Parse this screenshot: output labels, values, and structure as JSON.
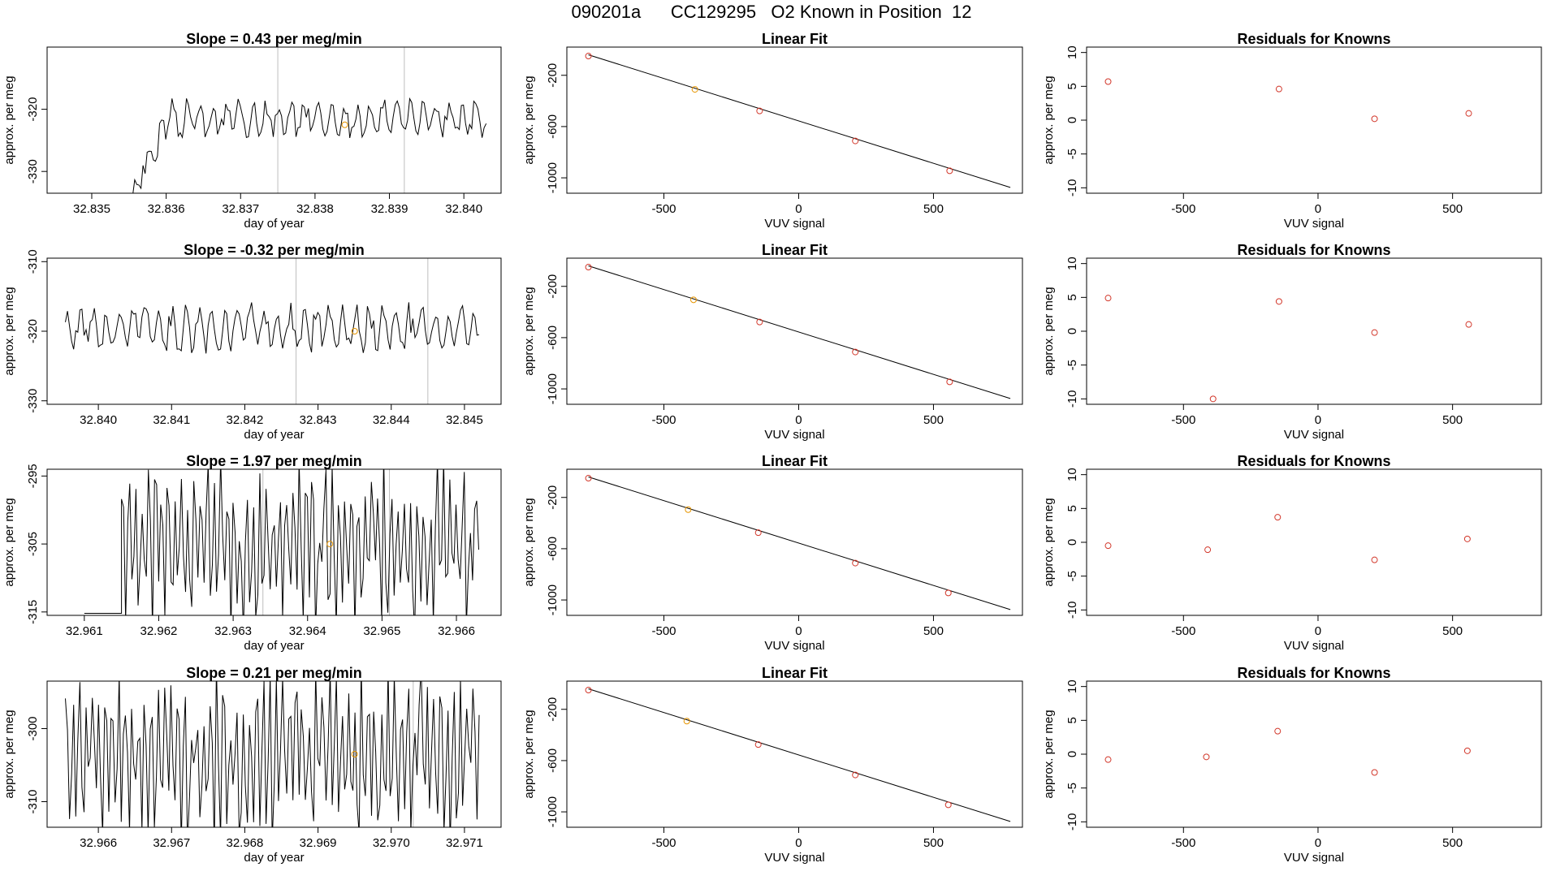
{
  "header": {
    "title": "090201a      CC129295   O2 Known in Position  12"
  },
  "colors": {
    "trace": "#000000",
    "frame": "#000000",
    "marker_orange": "#e69500",
    "marker_red": "#d2372a",
    "vline": "#bebebe"
  },
  "chart_data": [
    {
      "type": "line",
      "row": 0,
      "col": 0,
      "title": "Slope =  0.43  per meg/min",
      "xlabel": "day of year",
      "ylabel": "approx. per meg",
      "xlim": [
        32.8344,
        32.8405
      ],
      "ylim": [
        -333.5,
        -310
      ],
      "xticks": [
        32.835,
        32.836,
        32.837,
        32.838,
        32.839,
        32.84
      ],
      "xtick_labels": [
        "32.835",
        "32.836",
        "32.837",
        "32.838",
        "32.839",
        "32.840"
      ],
      "yticks": [
        -330,
        -320
      ],
      "ytick_labels": [
        "-330",
        "-320"
      ],
      "vlines": [
        32.8375,
        32.8392
      ],
      "marker": {
        "x": 32.8384,
        "y": -322.5
      },
      "trace": {
        "x0": 32.83555,
        "x1": 32.8403,
        "center": -321.5,
        "amp": 3.2,
        "freq": 0.45,
        "start_low": -333.5,
        "ramp_points": 18,
        "seed": 3
      }
    },
    {
      "type": "line",
      "row": 1,
      "col": 0,
      "title": "Slope =  -0.32  per meg/min",
      "xlabel": "day of year",
      "ylabel": "approx. per meg",
      "xlim": [
        32.8393,
        32.8455
      ],
      "ylim": [
        -330.5,
        -309.5
      ],
      "xticks": [
        32.84,
        32.841,
        32.842,
        32.843,
        32.844,
        32.845
      ],
      "xtick_labels": [
        "32.840",
        "32.841",
        "32.842",
        "32.843",
        "32.844",
        "32.845"
      ],
      "yticks": [
        -330,
        -320,
        -310
      ],
      "ytick_labels": [
        "-330",
        "-320",
        "-310"
      ],
      "vlines": [
        32.8427,
        32.8445
      ],
      "marker": {
        "x": 32.8435,
        "y": -320.0
      },
      "trace": {
        "x0": 32.83955,
        "x1": 32.8452,
        "center": -319.5,
        "amp": 3.5,
        "freq": 0.45,
        "start_low": null,
        "ramp_points": 0,
        "seed": 7
      }
    },
    {
      "type": "line",
      "row": 2,
      "col": 0,
      "title": "Slope =  1.97  per meg/min",
      "xlabel": "day of year",
      "ylabel": "approx. per meg",
      "xlim": [
        32.9605,
        32.9666
      ],
      "ylim": [
        -315.5,
        -294
      ],
      "xticks": [
        32.961,
        32.962,
        32.963,
        32.964,
        32.965,
        32.966
      ],
      "xtick_labels": [
        "32.961",
        "32.962",
        "32.963",
        "32.964",
        "32.965",
        "32.966"
      ],
      "yticks": [
        -315,
        -305,
        -295
      ],
      "ytick_labels": [
        "-315",
        "-305",
        "-295"
      ],
      "vlines": [
        32.9634,
        32.9651
      ],
      "marker": {
        "x": 32.9643,
        "y": -305.0
      },
      "trace": {
        "x0": 32.9615,
        "x1": 32.9663,
        "center": -305,
        "amp": 12,
        "freq": 0.9,
        "start_low": -315.2,
        "ramp_points": 0,
        "seed": 11,
        "flat_from": 32.961
      }
    },
    {
      "type": "line",
      "row": 3,
      "col": 0,
      "title": "Slope =  0.21  per meg/min",
      "xlabel": "day of year",
      "ylabel": "approx. per meg",
      "xlim": [
        32.9653,
        32.9715
      ],
      "ylim": [
        -313.5,
        -293.5
      ],
      "xticks": [
        32.966,
        32.967,
        32.968,
        32.969,
        32.97,
        32.971
      ],
      "xtick_labels": [
        "32.966",
        "32.967",
        "32.968",
        "32.969",
        "32.970",
        "32.971"
      ],
      "yticks": [
        -310,
        -300
      ],
      "ytick_labels": [
        "-310",
        "-300"
      ],
      "vlines": [
        32.9703
      ],
      "marker": {
        "x": 32.9695,
        "y": -303.5
      },
      "trace": {
        "x0": 32.96555,
        "x1": 32.9712,
        "center": -303.5,
        "amp": 12,
        "freq": 0.9,
        "start_low": null,
        "ramp_points": 0,
        "seed": 19
      }
    },
    {
      "type": "scatter",
      "row": 0,
      "col": 1,
      "title": "Linear Fit",
      "xlabel": "VUV signal",
      "ylabel": "approx. per meg",
      "xlim": [
        -860,
        830
      ],
      "ylim": [
        -1120,
        20
      ],
      "xticks": [
        -500,
        0,
        500
      ],
      "xtick_labels": [
        "-500",
        "0",
        "500"
      ],
      "yticks": [
        -1000,
        -600,
        -200
      ],
      "ytick_labels": [
        "-1000",
        "-600",
        "-200"
      ],
      "fit_line": {
        "x": [
          -780,
          785
        ],
        "y": [
          -40,
          -1075
        ]
      },
      "points": [
        {
          "x": -780,
          "y": -50,
          "color": "red"
        },
        {
          "x": -385,
          "y": -310,
          "color": "orange"
        },
        {
          "x": -145,
          "y": -478,
          "color": "red"
        },
        {
          "x": 210,
          "y": -712,
          "color": "red"
        },
        {
          "x": 560,
          "y": -945,
          "color": "red"
        }
      ]
    },
    {
      "type": "scatter",
      "row": 1,
      "col": 1,
      "title": "Linear Fit",
      "xlabel": "VUV signal",
      "ylabel": "approx. per meg",
      "xlim": [
        -860,
        830
      ],
      "ylim": [
        -1120,
        20
      ],
      "xticks": [
        -500,
        0,
        500
      ],
      "xtick_labels": [
        "-500",
        "0",
        "500"
      ],
      "yticks": [
        -1000,
        -600,
        -200
      ],
      "ytick_labels": [
        "-1000",
        "-600",
        "-200"
      ],
      "fit_line": {
        "x": [
          -780,
          785
        ],
        "y": [
          -40,
          -1075
        ]
      },
      "points": [
        {
          "x": -780,
          "y": -50,
          "color": "red"
        },
        {
          "x": -390,
          "y": -305,
          "color": "orange"
        },
        {
          "x": -145,
          "y": -478,
          "color": "red"
        },
        {
          "x": 210,
          "y": -712,
          "color": "red"
        },
        {
          "x": 560,
          "y": -945,
          "color": "red"
        }
      ]
    },
    {
      "type": "scatter",
      "row": 2,
      "col": 1,
      "title": "Linear Fit",
      "xlabel": "VUV signal",
      "ylabel": "approx. per meg",
      "xlim": [
        -860,
        830
      ],
      "ylim": [
        -1120,
        20
      ],
      "xticks": [
        -500,
        0,
        500
      ],
      "xtick_labels": [
        "-500",
        "0",
        "500"
      ],
      "yticks": [
        -1000,
        -600,
        -200
      ],
      "ytick_labels": [
        "-1000",
        "-600",
        "-200"
      ],
      "fit_line": {
        "x": [
          -780,
          785
        ],
        "y": [
          -40,
          -1075
        ]
      },
      "points": [
        {
          "x": -780,
          "y": -50,
          "color": "red"
        },
        {
          "x": -410,
          "y": -295,
          "color": "orange"
        },
        {
          "x": -150,
          "y": -475,
          "color": "red"
        },
        {
          "x": 210,
          "y": -712,
          "color": "red"
        },
        {
          "x": 555,
          "y": -945,
          "color": "red"
        }
      ]
    },
    {
      "type": "scatter",
      "row": 3,
      "col": 1,
      "title": "Linear Fit",
      "xlabel": "VUV signal",
      "ylabel": "approx. per meg",
      "xlim": [
        -860,
        830
      ],
      "ylim": [
        -1120,
        20
      ],
      "xticks": [
        -500,
        0,
        500
      ],
      "xtick_labels": [
        "-500",
        "0",
        "500"
      ],
      "yticks": [
        -1000,
        -600,
        -200
      ],
      "ytick_labels": [
        "-1000",
        "-600",
        "-200"
      ],
      "fit_line": {
        "x": [
          -780,
          785
        ],
        "y": [
          -40,
          -1075
        ]
      },
      "points": [
        {
          "x": -780,
          "y": -50,
          "color": "red"
        },
        {
          "x": -415,
          "y": -292,
          "color": "orange"
        },
        {
          "x": -150,
          "y": -475,
          "color": "red"
        },
        {
          "x": 210,
          "y": -712,
          "color": "red"
        },
        {
          "x": 555,
          "y": -945,
          "color": "red"
        }
      ]
    },
    {
      "type": "scatter",
      "row": 0,
      "col": 2,
      "title": "Residuals for Knowns",
      "xlabel": "VUV signal",
      "ylabel": "approx. per meg",
      "xlim": [
        -860,
        830
      ],
      "ylim": [
        -10.8,
        10.8
      ],
      "xticks": [
        -500,
        0,
        500
      ],
      "xtick_labels": [
        "-500",
        "0",
        "500"
      ],
      "yticks": [
        -10,
        -5,
        0,
        5,
        10
      ],
      "ytick_labels": [
        "-10",
        "-5",
        "0",
        "5",
        "10"
      ],
      "points": [
        {
          "x": -780,
          "y": 5.7,
          "color": "red"
        },
        {
          "x": -145,
          "y": 4.6,
          "color": "red"
        },
        {
          "x": 210,
          "y": 0.2,
          "color": "red"
        },
        {
          "x": 560,
          "y": 1.0,
          "color": "red"
        }
      ]
    },
    {
      "type": "scatter",
      "row": 1,
      "col": 2,
      "title": "Residuals for Knowns",
      "xlabel": "VUV signal",
      "ylabel": "approx. per meg",
      "xlim": [
        -860,
        830
      ],
      "ylim": [
        -10.8,
        10.8
      ],
      "xticks": [
        -500,
        0,
        500
      ],
      "xtick_labels": [
        "-500",
        "0",
        "500"
      ],
      "yticks": [
        -10,
        -5,
        0,
        5,
        10
      ],
      "ytick_labels": [
        "-10",
        "-5",
        "0",
        "5",
        "10"
      ],
      "points": [
        {
          "x": -780,
          "y": 4.9,
          "color": "red"
        },
        {
          "x": -390,
          "y": -10.0,
          "color": "red"
        },
        {
          "x": -145,
          "y": 4.4,
          "color": "red"
        },
        {
          "x": 210,
          "y": -0.2,
          "color": "red"
        },
        {
          "x": 560,
          "y": 1.0,
          "color": "red"
        }
      ]
    },
    {
      "type": "scatter",
      "row": 2,
      "col": 2,
      "title": "Residuals for Knowns",
      "xlabel": "VUV signal",
      "ylabel": "approx. per meg",
      "xlim": [
        -860,
        830
      ],
      "ylim": [
        -10.8,
        10.8
      ],
      "xticks": [
        -500,
        0,
        500
      ],
      "xtick_labels": [
        "-500",
        "0",
        "500"
      ],
      "yticks": [
        -10,
        -5,
        0,
        5,
        10
      ],
      "ytick_labels": [
        "-10",
        "-5",
        "0",
        "5",
        "10"
      ],
      "points": [
        {
          "x": -780,
          "y": -0.5,
          "color": "red"
        },
        {
          "x": -410,
          "y": -1.1,
          "color": "red"
        },
        {
          "x": -150,
          "y": 3.7,
          "color": "red"
        },
        {
          "x": 210,
          "y": -2.6,
          "color": "red"
        },
        {
          "x": 555,
          "y": 0.5,
          "color": "red"
        }
      ]
    },
    {
      "type": "scatter",
      "row": 3,
      "col": 2,
      "title": "Residuals for Knowns",
      "xlabel": "VUV signal",
      "ylabel": "approx. per meg",
      "xlim": [
        -860,
        830
      ],
      "ylim": [
        -10.8,
        10.8
      ],
      "xticks": [
        -500,
        0,
        500
      ],
      "xtick_labels": [
        "-500",
        "0",
        "500"
      ],
      "yticks": [
        -10,
        -5,
        0,
        5,
        10
      ],
      "ytick_labels": [
        "-10",
        "-5",
        "0",
        "5",
        "10"
      ],
      "points": [
        {
          "x": -780,
          "y": -0.8,
          "color": "red"
        },
        {
          "x": -415,
          "y": -0.4,
          "color": "red"
        },
        {
          "x": -150,
          "y": 3.4,
          "color": "red"
        },
        {
          "x": 210,
          "y": -2.7,
          "color": "red"
        },
        {
          "x": 555,
          "y": 0.5,
          "color": "red"
        }
      ]
    }
  ]
}
